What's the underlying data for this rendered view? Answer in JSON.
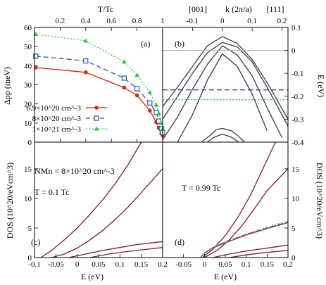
{
  "chart_data": [
    {
      "panel": "(a)",
      "type": "line",
      "xlabel": "T/Tc",
      "ylabel": "Δpp (meV)",
      "xlim": [
        0,
        1
      ],
      "ylim": [
        0,
        60
      ],
      "xticks": [
        "0.2",
        "0.4",
        "0.6",
        "0.8",
        "1"
      ],
      "yticks": [
        "0",
        "10",
        "20",
        "30",
        "40",
        "50",
        "60"
      ],
      "legend_position": "lower-left",
      "series": [
        {
          "name": "6.9×10^20 cm^-3",
          "color": "#d42a0e",
          "marker": "circle",
          "dash": "solid",
          "x": [
            0.01,
            0.4,
            0.7,
            0.8,
            0.9,
            0.95,
            0.97,
            0.99,
            1.0
          ],
          "y": [
            39,
            36.5,
            28.5,
            24.5,
            16.5,
            10.5,
            7.5,
            4.5,
            3.5
          ]
        },
        {
          "name": "8×10^20 cm^-3",
          "color": "#2c50b8",
          "marker": "square",
          "dash": "dash",
          "x": [
            0.01,
            0.4,
            0.7,
            0.8,
            0.9,
            0.95,
            0.97,
            0.99,
            1.0
          ],
          "y": [
            45,
            42.5,
            33.5,
            28,
            20.5,
            15.5,
            11,
            7,
            5
          ]
        },
        {
          "name": "1×10^21 cm^-3",
          "color": "#38c44a",
          "marker": "triangle",
          "dash": "dot",
          "x": [
            0.01,
            0.4,
            0.7,
            0.8,
            0.9,
            0.95,
            0.97,
            0.99,
            1.0
          ],
          "y": [
            56.5,
            53,
            42,
            35,
            26,
            19.5,
            15,
            10,
            7
          ]
        }
      ]
    },
    {
      "panel": "(b)",
      "type": "line",
      "xlabel": "k (2π/a)",
      "ylabel": "E (eV)",
      "xlim": [
        -0.2,
        0.22
      ],
      "ylim": [
        -0.4,
        0.1
      ],
      "xticks": [
        "-0.1",
        "0",
        "0.1",
        "0.2"
      ],
      "yticks": [
        "0.1",
        "0",
        "-0.1",
        "-0.2",
        "-0.3",
        "-0.4"
      ],
      "direction_labels": [
        "[001]",
        "[111]"
      ],
      "series": [
        {
          "color": "#3a3a3a",
          "x": [
            -0.2,
            -0.15,
            -0.1,
            -0.05,
            0,
            0.05,
            0.1,
            0.15,
            0.22
          ],
          "y": [
            -0.245,
            -0.16,
            -0.07,
            0.02,
            0.06,
            0.03,
            -0.04,
            -0.14,
            -0.3
          ]
        },
        {
          "color": "#3a3a3a",
          "x": [
            -0.2,
            -0.15,
            -0.1,
            -0.05,
            0,
            0.05,
            0.1,
            0.15,
            0.22
          ],
          "y": [
            -0.3,
            -0.2,
            -0.1,
            -0.01,
            0.035,
            0.015,
            -0.05,
            -0.16,
            -0.33
          ]
        },
        {
          "color": "#3a3a3a",
          "x": [
            -0.2,
            -0.15,
            -0.1,
            -0.05,
            0,
            0.05,
            0.1,
            0.15,
            0.2
          ],
          "y": [
            -0.39,
            -0.29,
            -0.17,
            -0.06,
            0.02,
            -0.02,
            -0.11,
            -0.25,
            -0.38
          ]
        },
        {
          "color": "#3a3a3a",
          "x": [
            -0.15,
            -0.1,
            -0.05,
            0,
            0.05,
            0.1,
            0.15
          ],
          "y": [
            -0.4,
            -0.28,
            -0.13,
            -0.015,
            -0.07,
            -0.19,
            -0.35
          ]
        },
        {
          "color": "#3a3a3a",
          "x": [
            -0.07,
            -0.04,
            -0.02,
            0,
            0.03,
            0.05,
            0.075
          ],
          "y": [
            -0.4,
            -0.37,
            -0.345,
            -0.34,
            -0.35,
            -0.37,
            -0.4
          ]
        },
        {
          "color": "#3a3a3a",
          "x": [
            -0.05,
            -0.03,
            0,
            0.03,
            0.055
          ],
          "y": [
            -0.4,
            -0.38,
            -0.365,
            -0.378,
            -0.4
          ]
        },
        {
          "color": "#2c50b8",
          "dash": "dash",
          "x": [
            -0.2,
            0.22
          ],
          "y": [
            -0.172,
            -0.172
          ]
        },
        {
          "color": "#38c44a",
          "dash": "dot",
          "x": [
            -0.2,
            0.22
          ],
          "y": [
            -0.215,
            -0.215
          ]
        },
        {
          "color": "#b8b8b8",
          "x": [
            -0.2,
            0.22
          ],
          "y": [
            0,
            0
          ]
        }
      ]
    },
    {
      "panel": "(c)",
      "type": "line",
      "xlabel": "E (eV)",
      "ylabel": "DOS (10^20/eVcm^3)",
      "xlim": [
        -0.1,
        0.2
      ],
      "ylim": [
        0,
        19.5
      ],
      "xticks": [
        "-0.1",
        "-0.05",
        "0",
        "0.05",
        "0.1",
        "0.15",
        "0.2"
      ],
      "yticks": [
        "0",
        "5",
        "10",
        "15"
      ],
      "annotations": [
        "NMn = 8×10^20 cm^-3",
        "T = 0.1 Tc"
      ],
      "series": [
        {
          "color": "#7a1a3c",
          "x": [
            -0.085,
            -0.06,
            -0.03,
            0,
            0.03,
            0.06,
            0.09,
            0.12,
            0.15
          ],
          "y": [
            0,
            1.2,
            3.0,
            5.0,
            7.3,
            9.8,
            12.6,
            15.8,
            19.5
          ]
        },
        {
          "color": "#7a1a3c",
          "x": [
            -0.06,
            -0.03,
            0,
            0.03,
            0.06,
            0.09,
            0.12,
            0.15,
            0.2
          ],
          "y": [
            0,
            0.6,
            1.6,
            3.0,
            4.6,
            6.5,
            8.6,
            11.0,
            15.0
          ]
        },
        {
          "color": "#7a1a3c",
          "x": [
            -0.02,
            0.02,
            0.06,
            0.1,
            0.14,
            0.2
          ],
          "y": [
            0,
            0.6,
            1.2,
            1.7,
            2.2,
            2.7
          ]
        },
        {
          "color": "#7a1a3c",
          "x": [
            0.03,
            0.07,
            0.11,
            0.15,
            0.2
          ],
          "y": [
            0,
            0.55,
            0.95,
            1.3,
            1.7
          ]
        }
      ]
    },
    {
      "panel": "(d)",
      "type": "line",
      "xlabel": "E (eV)",
      "ylabel": "DOS (10^20/eVcm^3)",
      "xlim": [
        -0.1,
        0.2
      ],
      "ylim": [
        0,
        19.5
      ],
      "xticks": [
        "-0.1",
        "-0.05",
        "0",
        "0.05",
        "0.1",
        "0.15",
        "0.2"
      ],
      "yticks": [
        "0",
        "5",
        "10",
        "15"
      ],
      "annotations": [
        "T = 0.99 Tc"
      ],
      "series": [
        {
          "color": "#7a1a3c",
          "x": [
            -0.005,
            0.02,
            0.05,
            0.08,
            0.11,
            0.14,
            0.17
          ],
          "y": [
            0,
            1.4,
            3.7,
            6.8,
            10.5,
            15.0,
            19.5
          ]
        },
        {
          "color": "#7a1a3c",
          "x": [
            0.0,
            0.03,
            0.06,
            0.09,
            0.12,
            0.15,
            0.2
          ],
          "y": [
            0,
            1.2,
            3.0,
            5.4,
            8.3,
            11.3,
            15.0
          ]
        },
        {
          "color": "#7a1a3c",
          "x": [
            0.02,
            0.06,
            0.1,
            0.14,
            0.2
          ],
          "y": [
            0,
            0.6,
            1.1,
            1.5,
            2.1
          ]
        },
        {
          "color": "#7a1a3c",
          "x": [
            0.06,
            0.1,
            0.14,
            0.2
          ],
          "y": [
            0,
            0.45,
            0.8,
            1.2
          ]
        },
        {
          "color": "#d42a0e",
          "x": [
            -0.01,
            0.0,
            0.02,
            0.05,
            0.1,
            0.15,
            0.2
          ],
          "y": [
            0,
            0.7,
            1.6,
            2.5,
            3.8,
            4.9,
            5.9
          ]
        },
        {
          "color": "#2c50b8",
          "dash": "dash",
          "x": [
            -0.01,
            0.0,
            0.02,
            0.05,
            0.1,
            0.15,
            0.2
          ],
          "y": [
            0,
            0.75,
            1.65,
            2.6,
            3.9,
            5.0,
            6.0
          ]
        },
        {
          "color": "#38c44a",
          "dash": "dot",
          "x": [
            -0.01,
            0.0,
            0.02,
            0.05,
            0.1,
            0.15,
            0.2
          ],
          "y": [
            0,
            0.8,
            1.75,
            2.7,
            4.0,
            5.15,
            6.2
          ]
        }
      ]
    }
  ]
}
